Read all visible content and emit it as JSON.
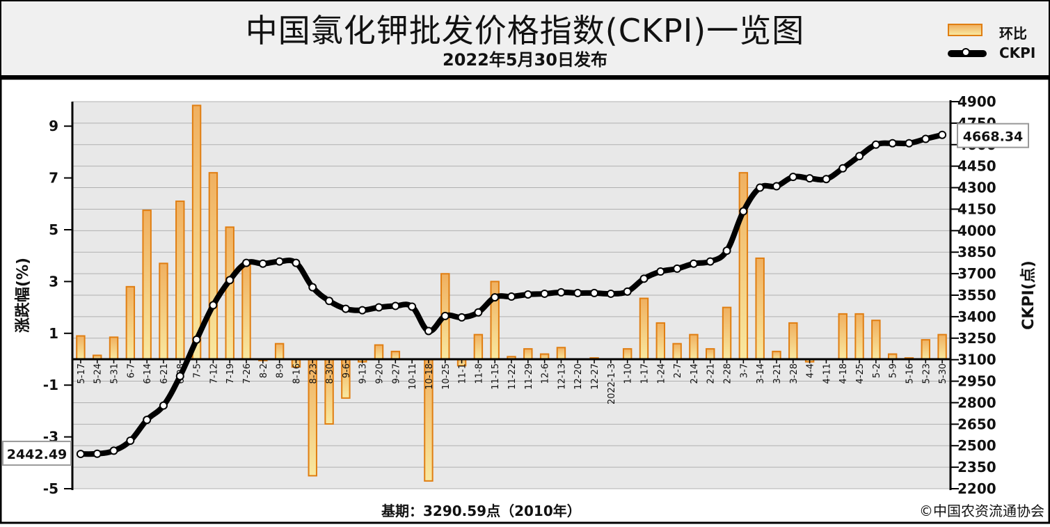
{
  "header": {
    "title": "中国氯化钾批发价格指数(CKPI)一览图",
    "subtitle": "2022年5月30日发布"
  },
  "legend": {
    "bar_label": "环比",
    "line_label": "CKPI"
  },
  "footer": {
    "base_period": "基期：3290.59点（2010年）",
    "copyright": "©中国农资流通协会"
  },
  "colors": {
    "bar_stroke": "#e07e12",
    "bar_fill_top": "#f0b060",
    "bar_fill_bottom": "#f8e8a0",
    "line": "#000000",
    "grid": "#b0b0b0",
    "plot_bg": "#e8e8e8",
    "header_bg": "#f0f0f0"
  },
  "chart_data": {
    "type": "bar+line",
    "title": "中国氯化钾批发价格指数(CKPI)一览图",
    "subtitle": "2022年5月30日发布",
    "ylabel_left": "涨跌幅(%)",
    "ylabel_right": "CKPI(点)",
    "ylim_left": [
      -5,
      10
    ],
    "yticks_left": [
      -5,
      -3,
      -1,
      1,
      3,
      5,
      7,
      9
    ],
    "ylim_right": [
      2200,
      4900
    ],
    "yticks_right": [
      2200,
      2350,
      2500,
      2650,
      2800,
      2950,
      3100,
      3250,
      3400,
      3550,
      3700,
      3850,
      4000,
      4150,
      4300,
      4450,
      4600,
      4750,
      4900
    ],
    "grid": true,
    "legend_position": "top-right",
    "categories": [
      "5-17",
      "5-24",
      "5-31",
      "6-7",
      "6-14",
      "6-21",
      "6-28",
      "7-5",
      "7-12",
      "7-19",
      "7-26",
      "8-2",
      "8-9",
      "8-16",
      "8-23",
      "8-30",
      "9-6",
      "9-13",
      "9-20",
      "9-27",
      "10-11",
      "10-18",
      "10-25",
      "11-1",
      "11-8",
      "11-15",
      "11-22",
      "11-29",
      "12-6",
      "12-13",
      "12-20",
      "12-27",
      "2022-1-3",
      "1-10",
      "1-17",
      "1-24",
      "2-7",
      "2-14",
      "2-21",
      "2-28",
      "3-7",
      "3-14",
      "3-21",
      "3-28",
      "4-4",
      "4-11",
      "4-18",
      "4-25",
      "5-2",
      "5-9",
      "5-16",
      "5-23",
      "5-30"
    ],
    "series": [
      {
        "name": "环比",
        "type": "bar",
        "axis": "left",
        "values": [
          0.9,
          0.15,
          0.85,
          2.8,
          5.75,
          3.7,
          6.1,
          9.8,
          7.2,
          5.1,
          3.7,
          -0.05,
          0.6,
          -0.3,
          -4.5,
          -2.5,
          -1.5,
          -0.1,
          0.55,
          0.3,
          0,
          -4.7,
          3.3,
          -0.25,
          0.95,
          3.0,
          0.1,
          0.4,
          0.2,
          0.45,
          0,
          0.05,
          0,
          0.4,
          2.35,
          1.4,
          0.6,
          0.95,
          0.4,
          2.0,
          7.2,
          3.9,
          0.3,
          1.4,
          -0.1,
          0,
          1.75,
          1.75,
          1.5,
          0.2,
          0.05,
          0.75,
          0.95
        ]
      },
      {
        "name": "CKPI",
        "type": "line",
        "axis": "right",
        "values": [
          2442.49,
          2444,
          2465,
          2535,
          2680,
          2780,
          2985,
          3240,
          3480,
          3655,
          3775,
          3770,
          3785,
          3775,
          3605,
          3510,
          3455,
          3445,
          3465,
          3475,
          3470,
          3300,
          3405,
          3395,
          3430,
          3535,
          3540,
          3555,
          3560,
          3570,
          3565,
          3565,
          3560,
          3575,
          3665,
          3715,
          3735,
          3770,
          3785,
          3860,
          4135,
          4300,
          4310,
          4375,
          4365,
          4360,
          4435,
          4520,
          4600,
          4610,
          4610,
          4640,
          4668.34
        ]
      }
    ],
    "annotations": [
      "2442.49",
      "4668.34"
    ]
  }
}
